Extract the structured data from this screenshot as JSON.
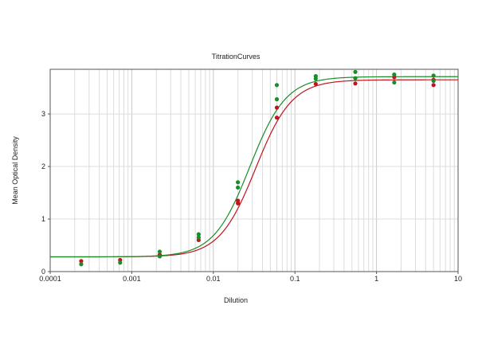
{
  "chart_data": {
    "type": "scatter",
    "title": "TitrationCurves",
    "xlabel": "Dilution",
    "ylabel": "Mean Optical Density",
    "x_scale": "log",
    "xlim": [
      0.0001,
      10
    ],
    "ylim": [
      0,
      3.85
    ],
    "grid": true,
    "legend": "none",
    "x_ticks": [
      "0.0001",
      "0.001",
      "0.01",
      "0.1",
      "1",
      "10"
    ],
    "x_tick_values": [
      0.0001,
      0.001,
      0.01,
      0.1,
      1,
      10
    ],
    "y_ticks": [
      "0",
      "1",
      "2",
      "3"
    ],
    "y_tick_values": [
      0,
      1,
      2,
      3
    ],
    "series": [
      {
        "color": "#c0141e",
        "points": [
          [
            0.00024,
            0.2
          ],
          [
            0.00072,
            0.22
          ],
          [
            0.0022,
            0.32
          ],
          [
            0.0066,
            0.6
          ],
          [
            0.02,
            1.35
          ],
          [
            0.02,
            1.3
          ],
          [
            0.06,
            3.12
          ],
          [
            0.06,
            2.93
          ],
          [
            0.18,
            3.57
          ],
          [
            0.55,
            3.58
          ],
          [
            1.65,
            3.7
          ],
          [
            5.0,
            3.55
          ],
          [
            5.0,
            3.65
          ]
        ],
        "curve": {
          "bottom": 0.28,
          "top": 3.65,
          "ec50": 0.033,
          "hill": 1.95
        }
      },
      {
        "color": "#1a8c2a",
        "points": [
          [
            0.00024,
            0.14
          ],
          [
            0.00072,
            0.17
          ],
          [
            0.0022,
            0.29
          ],
          [
            0.0022,
            0.38
          ],
          [
            0.0066,
            0.65
          ],
          [
            0.0066,
            0.71
          ],
          [
            0.02,
            1.6
          ],
          [
            0.02,
            1.7
          ],
          [
            0.06,
            3.28
          ],
          [
            0.06,
            3.55
          ],
          [
            0.18,
            3.72
          ],
          [
            0.18,
            3.67
          ],
          [
            0.55,
            3.8
          ],
          [
            0.55,
            3.68
          ],
          [
            1.65,
            3.75
          ],
          [
            1.65,
            3.6
          ],
          [
            5.0,
            3.73
          ],
          [
            5.0,
            3.63
          ]
        ],
        "curve": {
          "bottom": 0.28,
          "top": 3.71,
          "ec50": 0.028,
          "hill": 1.95
        }
      }
    ]
  }
}
